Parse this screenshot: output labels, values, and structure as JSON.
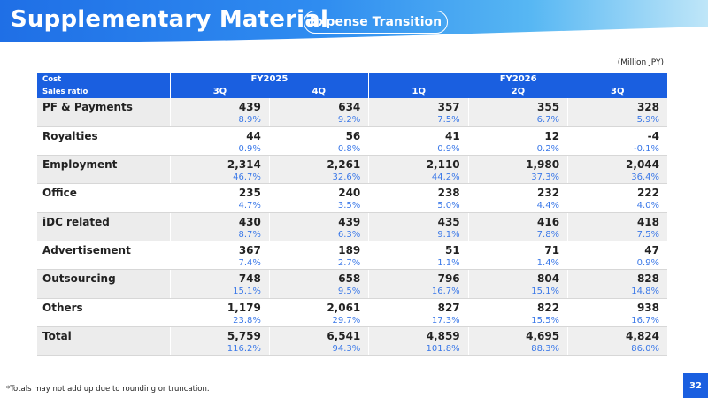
{
  "header": {
    "title": "Supplementary Material",
    "tag": "Expense Transition"
  },
  "unit": "(Million JPY)",
  "table": {
    "label_cost": "Cost",
    "label_ratio": "Sales ratio",
    "fy_groups": [
      "FY2025",
      "FY2026"
    ],
    "quarters": [
      "3Q",
      "4Q",
      "1Q",
      "2Q",
      "3Q"
    ],
    "rows": [
      {
        "label": "PF & Payments",
        "costs": [
          "439",
          "634",
          "357",
          "355",
          "328"
        ],
        "ratios": [
          "8.9%",
          "9.2%",
          "7.5%",
          "6.7%",
          "5.9%"
        ]
      },
      {
        "label": "Royalties",
        "costs": [
          "44",
          "56",
          "41",
          "12",
          "-4"
        ],
        "ratios": [
          "0.9%",
          "0.8%",
          "0.9%",
          "0.2%",
          "-0.1%"
        ]
      },
      {
        "label": "Employment",
        "costs": [
          "2,314",
          "2,261",
          "2,110",
          "1,980",
          "2,044"
        ],
        "ratios": [
          "46.7%",
          "32.6%",
          "44.2%",
          "37.3%",
          "36.4%"
        ]
      },
      {
        "label": "Office",
        "costs": [
          "235",
          "240",
          "238",
          "232",
          "222"
        ],
        "ratios": [
          "4.7%",
          "3.5%",
          "5.0%",
          "4.4%",
          "4.0%"
        ]
      },
      {
        "label": "iDC related",
        "costs": [
          "430",
          "439",
          "435",
          "416",
          "418"
        ],
        "ratios": [
          "8.7%",
          "6.3%",
          "9.1%",
          "7.8%",
          "7.5%"
        ]
      },
      {
        "label": "Advertisement",
        "costs": [
          "367",
          "189",
          "51",
          "71",
          "47"
        ],
        "ratios": [
          "7.4%",
          "2.7%",
          "1.1%",
          "1.4%",
          "0.9%"
        ]
      },
      {
        "label": "Outsourcing",
        "costs": [
          "748",
          "658",
          "796",
          "804",
          "828"
        ],
        "ratios": [
          "15.1%",
          "9.5%",
          "16.7%",
          "15.1%",
          "14.8%"
        ]
      },
      {
        "label": "Others",
        "costs": [
          "1,179",
          "2,061",
          "827",
          "822",
          "938"
        ],
        "ratios": [
          "23.8%",
          "29.7%",
          "17.3%",
          "15.5%",
          "16.7%"
        ]
      },
      {
        "label": "Total",
        "costs": [
          "5,759",
          "6,541",
          "4,859",
          "4,695",
          "4,824"
        ],
        "ratios": [
          "116.2%",
          "94.3%",
          "101.8%",
          "88.3%",
          "86.0%"
        ]
      }
    ]
  },
  "footnote": "*Totals may not add up due to rounding or truncation.",
  "page_number": "32",
  "colors": {
    "header_blue": "#1f6fe6",
    "table_header": "#1a5fe0",
    "ratio_text": "#3a78e8"
  }
}
